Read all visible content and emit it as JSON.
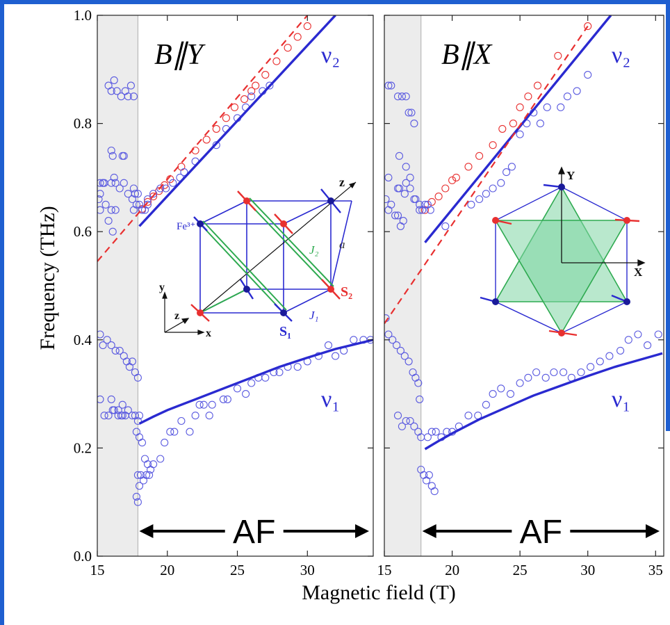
{
  "colors": {
    "frame_blue": "#1f5fd0",
    "model_blue": "#2a2ad0",
    "data_blue": "#5a5ae0",
    "data_red": "#e83030",
    "shade": "#ececec",
    "lattice_green": "#2eaa50",
    "kagome_fill": "#7fd6a4"
  },
  "xlabel": "Magnetic field (T)",
  "ylabel": "Frequency (THz)",
  "af_label": "AF",
  "panels": [
    {
      "title": "B∥Y",
      "nu2": "ν₂",
      "nu1": "ν₁",
      "xticks": [
        "15",
        "20",
        "25",
        "30"
      ],
      "yticks": [
        "0.0",
        "0.2",
        "0.4",
        "0.6",
        "0.8",
        "1.0"
      ],
      "inset": {
        "type": "cube",
        "labels": {
          "fe": "Fe³⁺",
          "s1": "S₁",
          "s2": "S₂",
          "j1": "J₁",
          "j2": "J₂",
          "a": "a",
          "z_big": "z",
          "y_small": "y",
          "z_small": "z",
          "x_small": "x"
        }
      }
    },
    {
      "title": "B∥X",
      "nu2": "ν₂",
      "nu1": "ν₁",
      "xticks": [
        "15",
        "20",
        "25",
        "30",
        "35"
      ],
      "yticks": [],
      "inset": {
        "type": "kagome",
        "labels": {
          "y": "Y",
          "x": "X"
        }
      }
    }
  ],
  "chart_data": [
    {
      "type": "scatter",
      "title": "B∥Y",
      "xlabel": "Magnetic field (T)",
      "ylabel": "Frequency (THz)",
      "xlim": [
        15,
        34.7
      ],
      "ylim": [
        0,
        1.0
      ],
      "shaded_range": [
        15,
        17.9
      ],
      "af_range": [
        17.9,
        34.7
      ],
      "series": [
        {
          "name": "ν₂",
          "style": "solid-line",
          "x": [
            18.0,
            32.0
          ],
          "y": [
            0.61,
            1.0
          ]
        },
        {
          "name": "ν₁",
          "style": "solid-line",
          "x": [
            18.0,
            19.0,
            20.0,
            22.0,
            24.0,
            26.0,
            28.0,
            30.0,
            32.0,
            34.7
          ],
          "y": [
            0.245,
            0.258,
            0.27,
            0.29,
            0.31,
            0.33,
            0.35,
            0.367,
            0.383,
            0.4
          ]
        },
        {
          "style": "dashed-line",
          "x": [
            15.0,
            30.0
          ],
          "y": [
            0.545,
            1.0
          ]
        },
        {
          "style": "red-circles",
          "x": [
            18.2,
            18.6,
            19.0,
            19.4,
            19.8,
            20.2,
            21.0,
            22.0,
            22.8,
            23.5,
            24.2,
            24.8,
            25.5,
            26.0,
            26.3,
            27.0,
            27.8,
            28.6,
            29.3,
            30.0
          ],
          "y": [
            0.642,
            0.655,
            0.665,
            0.675,
            0.686,
            0.697,
            0.72,
            0.75,
            0.77,
            0.79,
            0.81,
            0.83,
            0.845,
            0.86,
            0.87,
            0.89,
            0.915,
            0.94,
            0.96,
            0.98
          ]
        },
        {
          "style": "blue-circles",
          "x": [
            15.1,
            15.2,
            15.4,
            15.6,
            15.8,
            16.0,
            16.1,
            16.3,
            15.2,
            15.5,
            15.8,
            16.0,
            16.2,
            16.4,
            16.7,
            17.0,
            17.2,
            17.4,
            17.6,
            16.0,
            16.1,
            16.2,
            16.8,
            16.9,
            15.2,
            15.4,
            15.7,
            16.0,
            16.3,
            16.6,
            16.9,
            17.1,
            17.3,
            17.5,
            17.7,
            17.9,
            16.0,
            16.1,
            16.5,
            16.7,
            16.8,
            15.2,
            15.5,
            15.8,
            16.2,
            16.5,
            16.8,
            17.0,
            17.2,
            17.5,
            17.7,
            17.9,
            18.0,
            15.4,
            16.0,
            16.6,
            17.2,
            17.6,
            15.2,
            16.3,
            16.9,
            17.5,
            17.6,
            17.7,
            17.8,
            17.9,
            18.0,
            18.2,
            18.4,
            18.6,
            17.8,
            18.0,
            18.2,
            18.4,
            18.6,
            18.8,
            17.9,
            18.1,
            18.3,
            18.5,
            18.7,
            17.8,
            17.9,
            18.0,
            19.0,
            19.5,
            19.8,
            20.2,
            20.5,
            21.0,
            22.0,
            22.3,
            22.6,
            21.6,
            23.0,
            23.2,
            24.0,
            24.3,
            25.0,
            25.6,
            26.0,
            26.5,
            27.0,
            27.6,
            28.0,
            28.6,
            29.3,
            30.0,
            30.8,
            31.5,
            32.0,
            32.6,
            33.3,
            34.0,
            34.5,
            18.6,
            19.0,
            19.5,
            19.9,
            20.4,
            20.9,
            21.2,
            22.0,
            23.5,
            24.2,
            25.0,
            25.6,
            26.0,
            26.8,
            27.3
          ],
          "y": [
            0.66,
            0.64,
            0.69,
            0.65,
            0.62,
            0.64,
            0.6,
            0.64,
            0.69,
            0.69,
            0.87,
            0.86,
            0.88,
            0.86,
            0.85,
            0.86,
            0.85,
            0.87,
            0.85,
            0.75,
            0.74,
            0.7,
            0.74,
            0.74,
            0.41,
            0.39,
            0.4,
            0.39,
            0.38,
            0.38,
            0.37,
            0.36,
            0.35,
            0.36,
            0.34,
            0.33,
            0.29,
            0.27,
            0.27,
            0.26,
            0.28,
            0.29,
            0.26,
            0.26,
            0.27,
            0.26,
            0.26,
            0.26,
            0.27,
            0.26,
            0.26,
            0.25,
            0.26,
            0.69,
            0.69,
            0.68,
            0.67,
            0.68,
            0.67,
            0.69,
            0.69,
            0.66,
            0.64,
            0.67,
            0.65,
            0.67,
            0.65,
            0.64,
            0.64,
            0.65,
            0.23,
            0.22,
            0.21,
            0.18,
            0.17,
            0.16,
            0.15,
            0.15,
            0.14,
            0.15,
            0.15,
            0.11,
            0.1,
            0.13,
            0.17,
            0.18,
            0.21,
            0.23,
            0.23,
            0.25,
            0.26,
            0.28,
            0.28,
            0.23,
            0.26,
            0.28,
            0.29,
            0.29,
            0.31,
            0.3,
            0.32,
            0.33,
            0.33,
            0.34,
            0.34,
            0.35,
            0.35,
            0.36,
            0.37,
            0.39,
            0.37,
            0.38,
            0.4,
            0.4,
            0.4,
            0.66,
            0.67,
            0.68,
            0.68,
            0.69,
            0.7,
            0.71,
            0.73,
            0.76,
            0.79,
            0.81,
            0.83,
            0.85,
            0.86,
            0.87
          ]
        }
      ]
    },
    {
      "type": "scatter",
      "title": "B∥X",
      "xlabel": "Magnetic field (T)",
      "ylabel": "Frequency (THz)",
      "xlim": [
        15,
        35.6
      ],
      "ylim": [
        0,
        1.0
      ],
      "shaded_range": [
        15,
        17.7
      ],
      "af_range": [
        17.7,
        35.6
      ],
      "series": [
        {
          "name": "ν₂",
          "style": "solid-line",
          "x": [
            18.0,
            31.7
          ],
          "y": [
            0.58,
            1.0
          ]
        },
        {
          "name": "ν₁",
          "style": "solid-line",
          "x": [
            18.0,
            19.0,
            20.0,
            22.0,
            24.0,
            26.0,
            28.0,
            30.0,
            32.0,
            35.5
          ],
          "y": [
            0.198,
            0.213,
            0.227,
            0.253,
            0.275,
            0.297,
            0.315,
            0.333,
            0.35,
            0.375
          ]
        },
        {
          "style": "dashed-line",
          "x": [
            15.0,
            30.0
          ],
          "y": [
            0.43,
            0.98
          ]
        },
        {
          "style": "red-circles",
          "x": [
            18.0,
            18.5,
            19.0,
            19.5,
            20.0,
            20.3,
            21.2,
            22.0,
            23.0,
            23.7,
            24.5,
            25.0,
            25.6,
            26.3,
            27.8,
            30.0
          ],
          "y": [
            0.64,
            0.655,
            0.665,
            0.68,
            0.695,
            0.7,
            0.72,
            0.74,
            0.76,
            0.79,
            0.8,
            0.83,
            0.85,
            0.87,
            0.925,
            0.98
          ]
        },
        {
          "style": "blue-circles",
          "x": [
            15.1,
            15.3,
            15.5,
            15.8,
            16.0,
            16.2,
            16.4,
            15.3,
            15.5,
            16.0,
            16.3,
            16.6,
            16.8,
            17.0,
            17.2,
            16.1,
            16.6,
            16.9,
            15.1,
            15.3,
            15.6,
            15.9,
            16.2,
            16.5,
            16.8,
            17.1,
            17.3,
            17.5,
            17.6,
            16.0,
            16.3,
            16.6,
            16.9,
            17.2,
            17.5,
            17.7,
            15.3,
            16.0,
            16.6,
            17.2,
            17.6,
            16.1,
            16.5,
            16.9,
            17.3,
            17.6,
            17.8,
            18.0,
            18.2,
            18.4,
            17.7,
            17.9,
            18.1,
            18.3,
            18.5,
            18.7,
            18.2,
            18.5,
            18.8,
            19.2,
            19.6,
            20.0,
            20.5,
            21.2,
            21.9,
            22.5,
            23.0,
            23.6,
            24.3,
            25.0,
            25.6,
            26.2,
            26.9,
            27.5,
            28.2,
            28.8,
            29.5,
            30.2,
            30.9,
            31.6,
            32.4,
            33.0,
            33.7,
            34.4,
            35.2,
            21.4,
            22.0,
            22.5,
            23.0,
            23.6,
            24.0,
            24.4,
            25.0,
            25.5,
            26.0,
            26.5,
            27.0,
            28.0,
            28.5,
            29.2,
            30.0,
            19.5
          ],
          "y": [
            0.66,
            0.64,
            0.65,
            0.63,
            0.63,
            0.61,
            0.62,
            0.87,
            0.87,
            0.85,
            0.85,
            0.85,
            0.82,
            0.82,
            0.8,
            0.74,
            0.72,
            0.7,
            0.44,
            0.41,
            0.4,
            0.39,
            0.38,
            0.37,
            0.36,
            0.34,
            0.33,
            0.32,
            0.29,
            0.26,
            0.24,
            0.25,
            0.25,
            0.24,
            0.23,
            0.22,
            0.7,
            0.68,
            0.69,
            0.66,
            0.64,
            0.68,
            0.67,
            0.68,
            0.66,
            0.65,
            0.64,
            0.65,
            0.65,
            0.64,
            0.16,
            0.15,
            0.14,
            0.15,
            0.13,
            0.12,
            0.22,
            0.23,
            0.23,
            0.22,
            0.23,
            0.23,
            0.24,
            0.26,
            0.26,
            0.28,
            0.3,
            0.31,
            0.3,
            0.32,
            0.33,
            0.34,
            0.33,
            0.34,
            0.34,
            0.33,
            0.34,
            0.35,
            0.36,
            0.37,
            0.38,
            0.4,
            0.41,
            0.39,
            0.41,
            0.65,
            0.66,
            0.67,
            0.68,
            0.69,
            0.71,
            0.72,
            0.78,
            0.8,
            0.82,
            0.8,
            0.83,
            0.83,
            0.85,
            0.86,
            0.89,
            0.61
          ]
        }
      ]
    }
  ]
}
